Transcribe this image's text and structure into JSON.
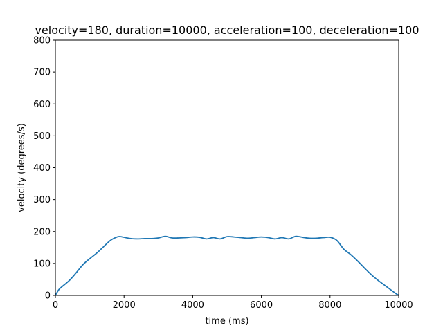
{
  "chart_data": {
    "type": "line",
    "title": "velocity=180, duration=10000, acceleration=100, deceleration=100",
    "xlabel": "time (ms)",
    "ylabel": "velocity (degrees/s)",
    "xlim": [
      0,
      10000
    ],
    "ylim": [
      0,
      800
    ],
    "xticks": [
      0,
      2000,
      4000,
      6000,
      8000,
      10000
    ],
    "yticks": [
      0,
      100,
      200,
      300,
      400,
      500,
      600,
      700,
      800
    ],
    "grid": false,
    "legend": "none",
    "series": [
      {
        "color": "#1f77b4",
        "x": [
          0,
          100,
          200,
          400,
          600,
          800,
          1000,
          1200,
          1400,
          1600,
          1800,
          1900,
          2000,
          2200,
          2400,
          2600,
          2800,
          3000,
          3200,
          3400,
          3600,
          3800,
          4000,
          4200,
          4400,
          4600,
          4800,
          5000,
          5200,
          5400,
          5600,
          5800,
          6000,
          6200,
          6400,
          6600,
          6800,
          7000,
          7200,
          7400,
          7600,
          7800,
          8000,
          8200,
          8400,
          8600,
          8800,
          9000,
          9200,
          9400,
          9600,
          9800,
          9900,
          10000
        ],
        "y": [
          0,
          18,
          28,
          46,
          70,
          96,
          115,
          132,
          152,
          172,
          183,
          184,
          182,
          178,
          177,
          178,
          178,
          180,
          185,
          180,
          180,
          181,
          183,
          182,
          177,
          181,
          177,
          184,
          183,
          181,
          179,
          181,
          183,
          181,
          177,
          181,
          177,
          185,
          182,
          179,
          179,
          181,
          182,
          172,
          145,
          128,
          108,
          86,
          65,
          47,
          31,
          15,
          7,
          0
        ]
      }
    ]
  }
}
